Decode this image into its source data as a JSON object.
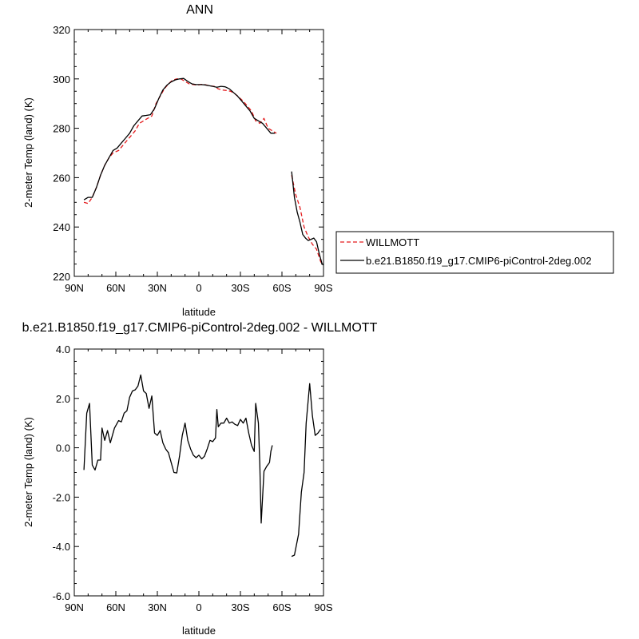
{
  "chart_data": [
    {
      "type": "line",
      "title": "ANN",
      "xlabel": "latitude",
      "ylabel": "2-meter Temp (land) (K)",
      "xlim": [
        90,
        -90
      ],
      "ylim": [
        220,
        320
      ],
      "x_ticks": [
        90,
        60,
        30,
        0,
        -30,
        -60,
        -90
      ],
      "x_tick_labels": [
        "90N",
        "60N",
        "30N",
        "0",
        "30S",
        "60S",
        "90S"
      ],
      "y_ticks": [
        220,
        240,
        260,
        280,
        300,
        320
      ],
      "y_tick_labels": [
        "220",
        "240",
        "260",
        "280",
        "300",
        "320"
      ],
      "legend_position": "right",
      "series": [
        {
          "name": "WILLMOTT",
          "color": "#e41a1c",
          "dash": "dashed",
          "segments": [
            [
              [
                83,
                250
              ],
              [
                80,
                249.5
              ],
              [
                77,
                252
              ],
              [
                74,
                256
              ],
              [
                71,
                261
              ],
              [
                68,
                265
              ],
              [
                65,
                268
              ],
              [
                62,
                270
              ],
              [
                58,
                271
              ],
              [
                55,
                273
              ],
              [
                52,
                275
              ],
              [
                49,
                277
              ],
              [
                46,
                279
              ],
              [
                43,
                282
              ],
              [
                40,
                283
              ],
              [
                37,
                284
              ],
              [
                34,
                285
              ],
              [
                31,
                290
              ],
              [
                28,
                293
              ],
              [
                25,
                296
              ],
              [
                22,
                298
              ],
              [
                19,
                299.5
              ],
              [
                16,
                300
              ],
              [
                13,
                300
              ],
              [
                10,
                299
              ],
              [
                7,
                298
              ],
              [
                4,
                297.7
              ],
              [
                1,
                297.5
              ],
              [
                -2,
                297.8
              ],
              [
                -5,
                297.6
              ],
              [
                -8,
                297.2
              ],
              [
                -11,
                297
              ],
              [
                -14,
                296
              ],
              [
                -17,
                295.5
              ],
              [
                -20,
                295.3
              ],
              [
                -23,
                295
              ],
              [
                -26,
                294
              ],
              [
                -29,
                292.5
              ],
              [
                -32,
                291
              ],
              [
                -35,
                289
              ],
              [
                -38,
                287
              ],
              [
                -41,
                283
              ],
              [
                -44,
                282
              ],
              [
                -47,
                284
              ],
              [
                -50,
                280
              ],
              [
                -53,
                279
              ],
              [
                -56,
                278
              ]
            ],
            [
              [
                -67,
                261
              ],
              [
                -70,
                253
              ],
              [
                -73,
                248
              ],
              [
                -76,
                240
              ],
              [
                -79,
                236
              ],
              [
                -82,
                233
              ],
              [
                -85,
                231
              ],
              [
                -88,
                226
              ],
              [
                -89,
                225
              ]
            ]
          ]
        },
        {
          "name": "b.e21.B1850.f19_g17.CMIP6-piControl-2deg.002",
          "color": "#000000",
          "dash": "solid",
          "segments": [
            [
              [
                83,
                251
              ],
              [
                80,
                252
              ],
              [
                77,
                252
              ],
              [
                74,
                256
              ],
              [
                71,
                261
              ],
              [
                68,
                265
              ],
              [
                65,
                268
              ],
              [
                62,
                271
              ],
              [
                59,
                272
              ],
              [
                56,
                274
              ],
              [
                53,
                276
              ],
              [
                50,
                278
              ],
              [
                47,
                281
              ],
              [
                44,
                283
              ],
              [
                41,
                285
              ],
              [
                38,
                285.2
              ],
              [
                35,
                285.5
              ],
              [
                32,
                288
              ],
              [
                29,
                292
              ],
              [
                26,
                295.5
              ],
              [
                23,
                297.5
              ],
              [
                20,
                298.8
              ],
              [
                17,
                299.6
              ],
              [
                14,
                300
              ],
              [
                11,
                300.2
              ],
              [
                8,
                299
              ],
              [
                5,
                298
              ],
              [
                2,
                297.7
              ],
              [
                -1,
                297.7
              ],
              [
                -4,
                297.6
              ],
              [
                -7,
                297.3
              ],
              [
                -10,
                297
              ],
              [
                -13,
                296.6
              ],
              [
                -16,
                297
              ],
              [
                -19,
                296.8
              ],
              [
                -22,
                296
              ],
              [
                -25,
                294.5
              ],
              [
                -28,
                293
              ],
              [
                -31,
                291
              ],
              [
                -34,
                289
              ],
              [
                -37,
                287
              ],
              [
                -40,
                284
              ],
              [
                -43,
                283
              ],
              [
                -46,
                282
              ],
              [
                -49,
                280
              ],
              [
                -52,
                278
              ],
              [
                -55,
                278
              ]
            ],
            [
              [
                -67,
                262.5
              ],
              [
                -69,
                252
              ],
              [
                -71,
                246
              ],
              [
                -73,
                242
              ],
              [
                -75,
                237
              ],
              [
                -77,
                235.5
              ],
              [
                -79,
                234.5
              ],
              [
                -81,
                235
              ],
              [
                -83,
                235.5
              ],
              [
                -85,
                234
              ],
              [
                -87,
                229
              ],
              [
                -89,
                225
              ],
              [
                -90,
                224.6
              ]
            ]
          ]
        }
      ]
    },
    {
      "type": "line",
      "title": "b.e21.B1850.f19_g17.CMIP6-piControl-2deg.002 - WILLMOTT",
      "xlabel": "latitude",
      "ylabel": "2-meter Temp (land) (K)",
      "xlim": [
        90,
        -90
      ],
      "ylim": [
        -6,
        4
      ],
      "x_ticks": [
        90,
        60,
        30,
        0,
        -30,
        -60,
        -90
      ],
      "x_tick_labels": [
        "90N",
        "60N",
        "30N",
        "0",
        "30S",
        "60S",
        "90S"
      ],
      "y_ticks": [
        -6,
        -4,
        -2,
        0,
        2,
        4
      ],
      "y_tick_labels": [
        "-6.0",
        "-4.0",
        "-2.0",
        "0.0",
        "2.0",
        "4.0"
      ],
      "series": [
        {
          "color": "#000000",
          "dash": "solid",
          "segments": [
            [
              [
                83,
                -0.9
              ],
              [
                81,
                1.4
              ],
              [
                79,
                1.8
              ],
              [
                77,
                -0.7
              ],
              [
                75,
                -0.9
              ],
              [
                73,
                -0.5
              ],
              [
                71,
                -0.5
              ],
              [
                70,
                0.8
              ],
              [
                68,
                0.3
              ],
              [
                66,
                0.7
              ],
              [
                64,
                0.2
              ],
              [
                61,
                0.8
              ],
              [
                58,
                1.1
              ],
              [
                56,
                1.05
              ],
              [
                54,
                1.4
              ],
              [
                52,
                1.5
              ],
              [
                50,
                2.05
              ],
              [
                48,
                2.3
              ],
              [
                46,
                2.35
              ],
              [
                44,
                2.5
              ],
              [
                42,
                2.95
              ],
              [
                40,
                2.3
              ],
              [
                38,
                2.2
              ],
              [
                36,
                1.6
              ],
              [
                34,
                2.1
              ],
              [
                32,
                0.6
              ],
              [
                30,
                0.5
              ],
              [
                28,
                0.7
              ],
              [
                26,
                0.2
              ],
              [
                24,
                -0.05
              ],
              [
                22,
                -0.2
              ],
              [
                20,
                -0.6
              ],
              [
                18,
                -1.0
              ],
              [
                16,
                -1.02
              ],
              [
                14,
                -0.35
              ],
              [
                12,
                0.5
              ],
              [
                10,
                1.0
              ],
              [
                8,
                0.3
              ],
              [
                6,
                -0.05
              ],
              [
                4,
                -0.3
              ],
              [
                2,
                -0.4
              ],
              [
                0,
                -0.3
              ],
              [
                -2,
                -0.45
              ],
              [
                -4,
                -0.35
              ],
              [
                -6,
                -0.05
              ],
              [
                -8,
                0.3
              ],
              [
                -10,
                0.25
              ],
              [
                -12,
                0.4
              ],
              [
                -13,
                1.55
              ],
              [
                -14,
                0.85
              ],
              [
                -16,
                1.0
              ],
              [
                -18,
                1.0
              ],
              [
                -20,
                1.2
              ],
              [
                -22,
                1.0
              ],
              [
                -24,
                1.05
              ],
              [
                -26,
                0.95
              ],
              [
                -28,
                0.9
              ],
              [
                -30,
                1.15
              ],
              [
                -32,
                1.0
              ],
              [
                -34,
                1.2
              ],
              [
                -36,
                0.6
              ],
              [
                -38,
                0.1
              ],
              [
                -40,
                -0.15
              ],
              [
                -41,
                1.8
              ],
              [
                -43,
                1.0
              ],
              [
                -44,
                -0.7
              ],
              [
                -45,
                -3.05
              ],
              [
                -47,
                -0.95
              ],
              [
                -49,
                -0.75
              ],
              [
                -51,
                -0.6
              ],
              [
                -52,
                -0.15
              ],
              [
                -53,
                0.1
              ]
            ],
            [
              [
                -67,
                -4.4
              ],
              [
                -69,
                -4.35
              ],
              [
                -72,
                -3.5
              ],
              [
                -74,
                -1.8
              ],
              [
                -76,
                -1.0
              ],
              [
                -77.5,
                1.0
              ],
              [
                -80,
                2.6
              ],
              [
                -82,
                1.3
              ],
              [
                -84,
                0.5
              ],
              [
                -86,
                0.6
              ],
              [
                -88,
                0.75
              ]
            ]
          ]
        }
      ]
    }
  ]
}
